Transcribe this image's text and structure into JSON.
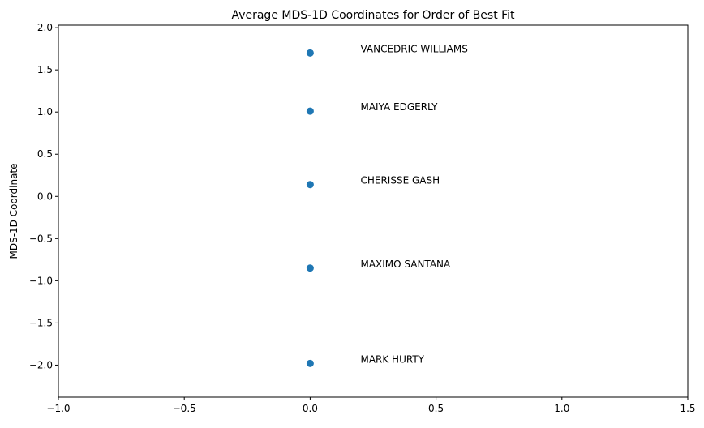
{
  "chart_data": {
    "type": "scatter",
    "title": "Average MDS-1D Coordinates for Order of Best Fit",
    "xlabel": "",
    "ylabel": "MDS-1D Coordinate",
    "xlim": [
      -1.0,
      1.5
    ],
    "ylim": [
      -2.38,
      2.03
    ],
    "xticks": [
      -1.0,
      -0.5,
      0.0,
      0.5,
      1.0,
      1.5
    ],
    "xtick_labels": [
      "−1.0",
      "−0.5",
      "0.0",
      "0.5",
      "1.0",
      "1.5"
    ],
    "yticks": [
      2.0,
      1.5,
      1.0,
      0.5,
      0.0,
      -0.5,
      -1.0,
      -1.5,
      -2.0
    ],
    "ytick_labels": [
      "2.0",
      "1.5",
      "1.0",
      "0.5",
      "0.0",
      "−0.5",
      "−1.0",
      "−1.5",
      "−2.0"
    ],
    "grid": false,
    "marker_color": "#1f77b4",
    "points": [
      {
        "label": "VANCEDRIC WILLIAMS",
        "x": 0.0,
        "y": 1.7
      },
      {
        "label": "MAIYA EDGERLY",
        "x": 0.0,
        "y": 1.01
      },
      {
        "label": "CHERISSE GASH",
        "x": 0.0,
        "y": 0.14
      },
      {
        "label": "MAXIMO SANTANA",
        "x": 0.0,
        "y": -0.85
      },
      {
        "label": "MARK HURTY",
        "x": 0.0,
        "y": -1.98
      }
    ],
    "label_x": 0.2
  }
}
